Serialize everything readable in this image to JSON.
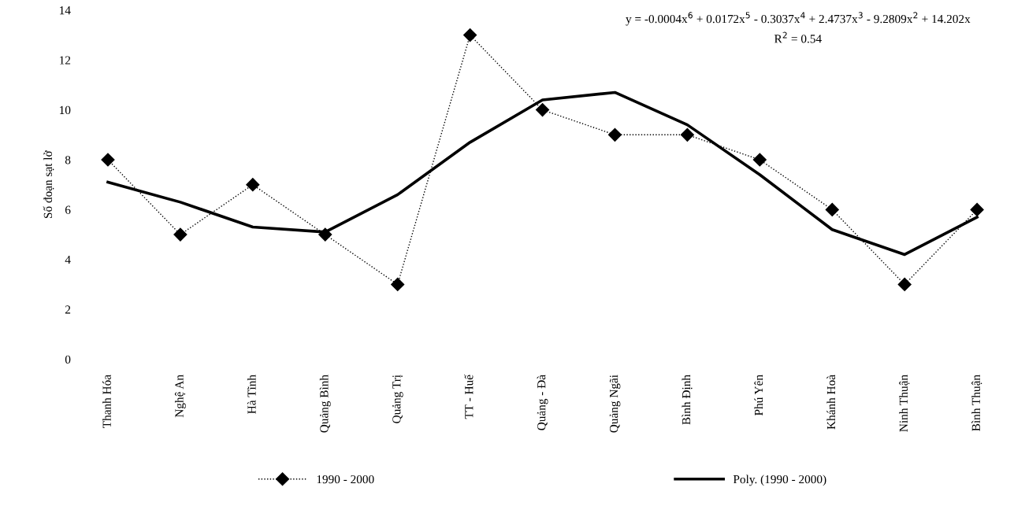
{
  "chart_data": {
    "type": "line",
    "ylabel": "Số đoạn sạt lở",
    "categories": [
      "Thanh Hóa",
      "Nghệ An",
      "Hà Tĩnh",
      "Quảng Bình",
      "Quảng Trị",
      "TT - Huế",
      "Quảng - Đà",
      "Quảng Ngãi",
      "Bình Định",
      "Phú Yên",
      "Khánh Hoà",
      "Ninh Thuận",
      "Bình Thuận"
    ],
    "series": [
      {
        "name": "1990 - 2000",
        "color": "#000000",
        "marker": "diamond",
        "line_style": "dotted",
        "values": [
          8,
          5,
          7,
          5,
          3,
          13,
          10,
          9,
          9,
          8,
          6,
          3,
          6
        ]
      },
      {
        "name": "Poly. (1990 - 2000)",
        "color": "#000000",
        "marker": "none",
        "line_style": "solid",
        "values": [
          7.1,
          6.3,
          5.3,
          5.1,
          6.6,
          8.7,
          10.4,
          10.7,
          9.4,
          7.4,
          5.2,
          4.2,
          5.7
        ]
      }
    ],
    "ylim": [
      0,
      14
    ],
    "yticks": [
      0,
      2,
      4,
      6,
      8,
      10,
      12,
      14
    ],
    "grid": false,
    "legend": "bottom",
    "annotations": [
      "y = -0.0004x$^{6}$ + 0.0172x$^{5}$ - 0.3037x$^{4}$ + 2.4737x$^{3}$ - 9.2809x$^{2}$ + 14.202x",
      "R$^{2}$ = 0.54"
    ]
  }
}
